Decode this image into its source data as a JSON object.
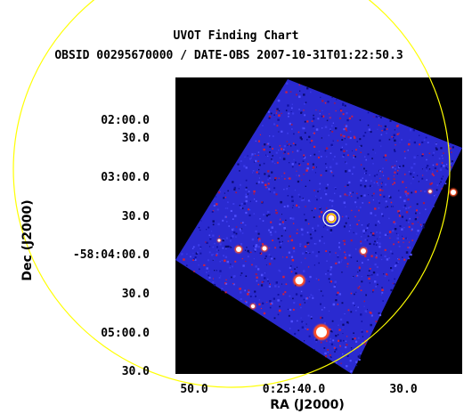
{
  "title": "UVOT Finding Chart",
  "subtitle": "OBSID 00295670000 / DATE-OBS 2007-10-31T01:22:50.3",
  "xlabel": "RA (J2000)",
  "ylabel": "Dec (J2000)",
  "x_ticks": [
    "50.0",
    "0:25:40.0",
    "30.0"
  ],
  "y_ticks": [
    "02:00.0",
    "30.0",
    "03:00.0",
    "30.0",
    "-58:04:00.0",
    "30.0",
    "05:00.0",
    "30.0"
  ],
  "colors": {
    "background": "#000000",
    "field": "#2a2ad0",
    "noise_red": "#d02040",
    "star": "#ffffff",
    "error_circle": "#ffff00",
    "target_markers": "#ffffff"
  }
}
